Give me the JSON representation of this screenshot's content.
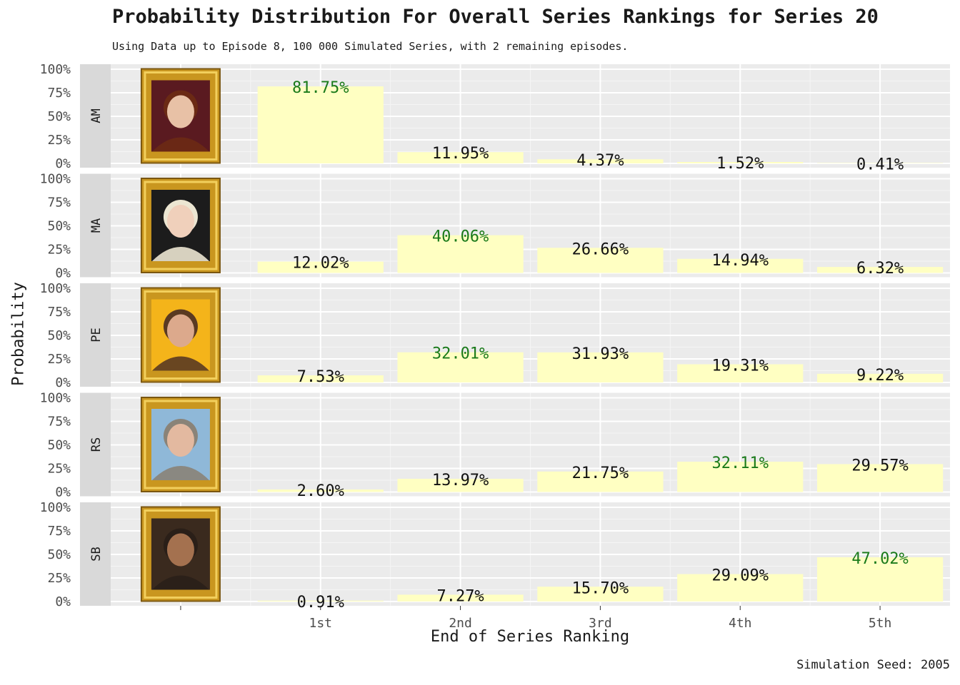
{
  "chart_data": {
    "type": "bar",
    "title": "Probability Distribution For Overall Series Rankings for Series 20",
    "subtitle": "Using Data up to Episode 8, 100 000 Simulated Series, with 2 remaining episodes.",
    "caption": "Simulation Seed: 2005",
    "xlabel": "End of Series Ranking",
    "ylabel": "Probability",
    "categories": [
      "1st",
      "2nd",
      "3rd",
      "4th",
      "5th"
    ],
    "ylim": [
      0,
      1
    ],
    "yticks": [
      "0%",
      "25%",
      "50%",
      "75%",
      "100%"
    ],
    "grid": true,
    "facet": "rows",
    "bar_color": "#FFFFC2",
    "highlight_color": "#1a7a1a",
    "panel_color": "#EBEBEB",
    "strip_color": "#D9D9D9",
    "series": [
      {
        "name": "AM",
        "values": [
          0.8175,
          0.1195,
          0.0437,
          0.0152,
          0.0041
        ],
        "labels": [
          "81.75%",
          "11.95%",
          "4.37%",
          "1.52%",
          "0.41%"
        ],
        "portrait_bg": "#5a1a20",
        "skin": "#e8c1a6",
        "hair": "#6b2a14"
      },
      {
        "name": "MA",
        "values": [
          0.1202,
          0.4006,
          0.2666,
          0.1494,
          0.0632
        ],
        "labels": [
          "12.02%",
          "40.06%",
          "26.66%",
          "14.94%",
          "6.32%"
        ],
        "portrait_bg": "#1c1c1c",
        "skin": "#f0d0bb",
        "hair": "#ece6d2"
      },
      {
        "name": "PE",
        "values": [
          0.0753,
          0.3201,
          0.3193,
          0.1931,
          0.0922
        ],
        "labels": [
          "7.53%",
          "32.01%",
          "31.93%",
          "19.31%",
          "9.22%"
        ],
        "portrait_bg": "#f4b41a",
        "skin": "#dca98c",
        "hair": "#5a3a22"
      },
      {
        "name": "RS",
        "values": [
          0.026,
          0.1397,
          0.2175,
          0.3211,
          0.2957
        ],
        "labels": [
          "2.60%",
          "13.97%",
          "21.75%",
          "32.11%",
          "29.57%"
        ],
        "portrait_bg": "#8fb8d8",
        "skin": "#e3b9a0",
        "hair": "#8a8378"
      },
      {
        "name": "SB",
        "values": [
          0.0091,
          0.0727,
          0.157,
          0.2909,
          0.4702
        ],
        "labels": [
          "0.91%",
          "7.27%",
          "15.70%",
          "29.09%",
          "47.02%"
        ],
        "portrait_bg": "#3a2a1e",
        "skin": "#a4714f",
        "hair": "#2a1f18"
      }
    ]
  }
}
